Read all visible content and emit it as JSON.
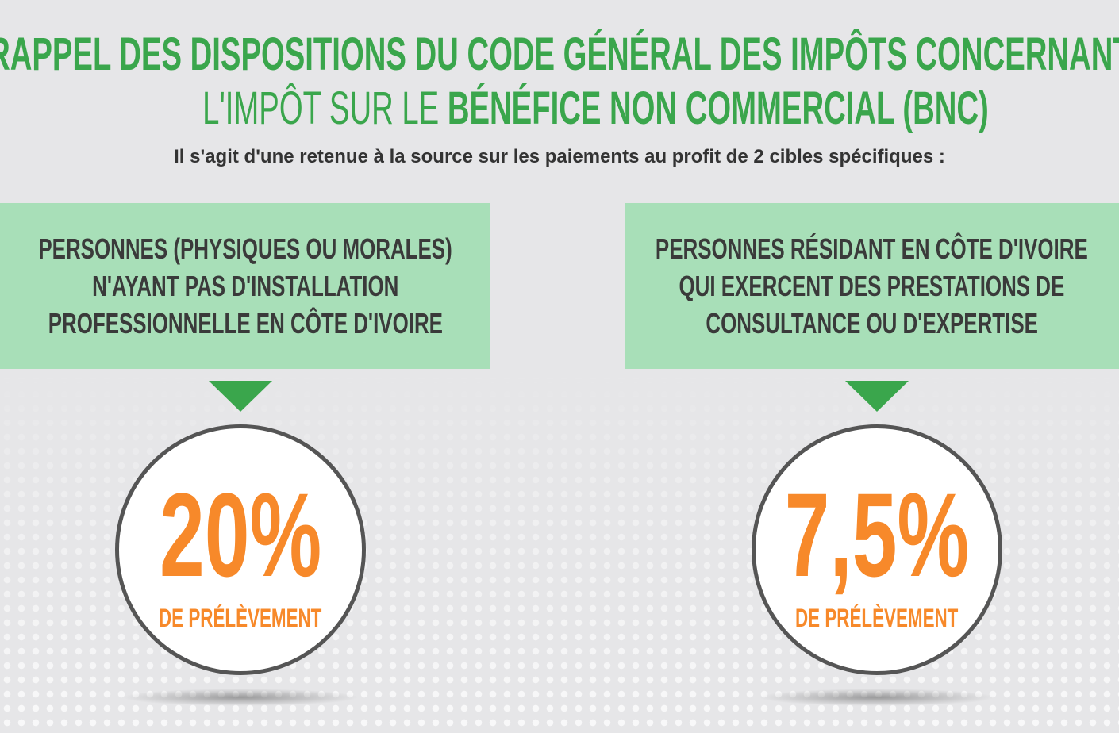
{
  "header": {
    "title_line1": "RAPPEL DES DISPOSITIONS DU CODE GÉNÉRAL DES IMPÔTS CONCERNANT",
    "title_line2_prefix": "L'IMPÔT SUR LE",
    "title_line2_emphasis": "BÉNÉFICE NON COMMERCIAL (BNC)",
    "subtitle": "Il s'agit d'une retenue à la source sur les paiements au profit de 2 cibles spécifiques :"
  },
  "targets": [
    {
      "lines": [
        "PERSONNES (PHYSIQUES OU MORALES)",
        "N'AYANT PAS D'INSTALLATION",
        "PROFESSIONNELLE EN CÔTE D'IVOIRE"
      ],
      "rate": "20%",
      "rate_label": "DE PRÉLÈVEMENT"
    },
    {
      "lines": [
        "PERSONNES RÉSIDANT EN CÔTE D'IVOIRE",
        "QUI EXERCENT DES PRESTATIONS DE",
        "CONSULTANCE OU D'EXPERTISE"
      ],
      "rate": "7,5%",
      "rate_label": "DE PRÉLÈVEMENT"
    }
  ],
  "colors": {
    "green": "#3aa64c",
    "light_green": "#a8dfb8",
    "orange": "#f7892a",
    "background": "#e6e6e8"
  }
}
